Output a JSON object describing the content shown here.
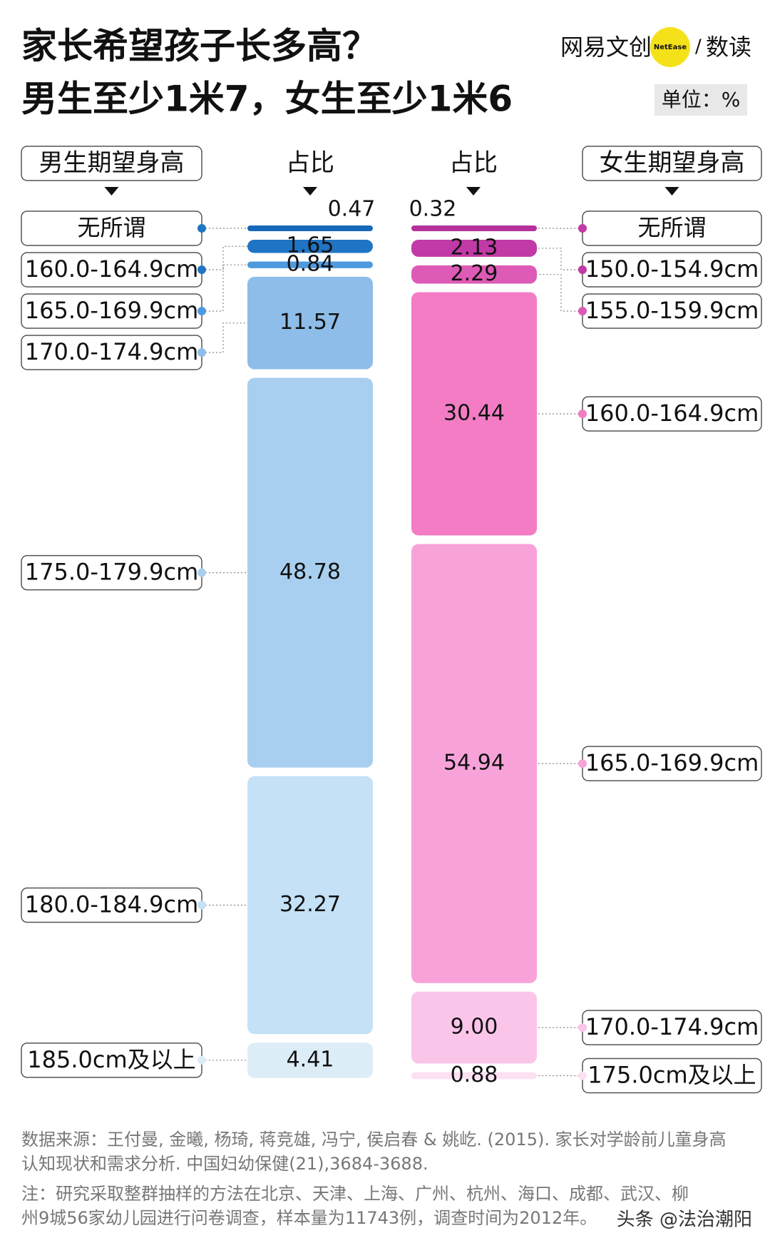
{
  "chart_data": {
    "type": "stacked-bar",
    "title": "家长希望孩子长多高？",
    "subtitle": "男生至少1米7，女生至少1米6",
    "brand": [
      "网易文创",
      "NetEase",
      "数读"
    ],
    "unit_label": "单位：%",
    "columns": [
      {
        "name": "男生期望身高",
        "value_header": "占比",
        "categories": [
          "无所谓",
          "160.0-164.9cm",
          "165.0-169.9cm",
          "170.0-174.9cm",
          "175.0-179.9cm",
          "180.0-184.9cm",
          "185.0cm及以上"
        ],
        "values": [
          0.47,
          1.65,
          0.84,
          11.57,
          48.78,
          32.27,
          4.41
        ],
        "colors": [
          "#1668b8",
          "#1f74c4",
          "#4d9ade",
          "#8dbde8",
          "#a8cfef",
          "#c4e1f6",
          "#dcedf7"
        ]
      },
      {
        "name": "女生期望身高",
        "value_header": "占比",
        "categories": [
          "无所谓",
          "150.0-154.9cm",
          "155.0-159.9cm",
          "160.0-164.9cm",
          "165.0-169.9cm",
          "170.0-174.9cm",
          "175.0cm及以上"
        ],
        "values": [
          0.32,
          2.13,
          2.29,
          30.44,
          54.94,
          9.0,
          0.88
        ],
        "value_labels": [
          "0.32",
          "2.13",
          "2.29",
          "30.44",
          "54.94",
          "9.00",
          "0.88"
        ],
        "colors": [
          "#b5309b",
          "#c13aa6",
          "#dd5ab6",
          "#f47cc5",
          "#f8a2da",
          "#fbc5ea",
          "#fde0f2"
        ]
      }
    ],
    "source": [
      "数据来源：王付曼, 金曦, 杨琦, 蒋竞雄, 冯宁, 侯启春 & 姚屹. (2015). 家长对学龄前儿童身高",
      "认知现状和需求分析. 中国妇幼保健(21),3684-3688."
    ],
    "note": [
      "注：研究采取整群抽样的方法在北京、天津、上海、广州、杭州、海口、成都、武汉、柳",
      "州9城56家幼儿园进行问卷调查，样本量为11743例，调查时间为2012年。"
    ],
    "watermark": "头条 @法治潮阳"
  }
}
